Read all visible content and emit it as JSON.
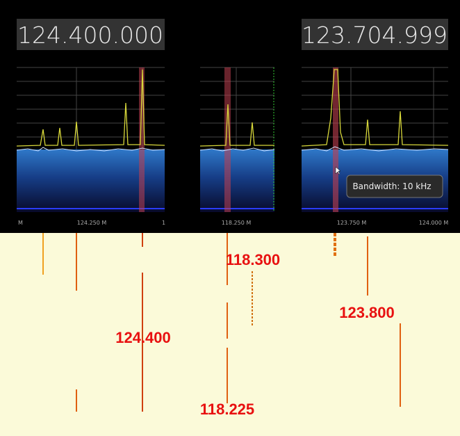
{
  "panels": [
    {
      "frequency": "124.400.000",
      "axis_labels": [
        "M",
        "124.250 M",
        "1"
      ]
    },
    {
      "axis_labels": [
        "118.250 M"
      ]
    },
    {
      "frequency": "123.704.999",
      "axis_labels": [
        "123.750 M",
        "124.000 M"
      ],
      "tooltip": "Bandwidth: 10 kHz"
    }
  ],
  "annotations": [
    "118.300",
    "124.400",
    "123.800",
    "118.225"
  ]
}
